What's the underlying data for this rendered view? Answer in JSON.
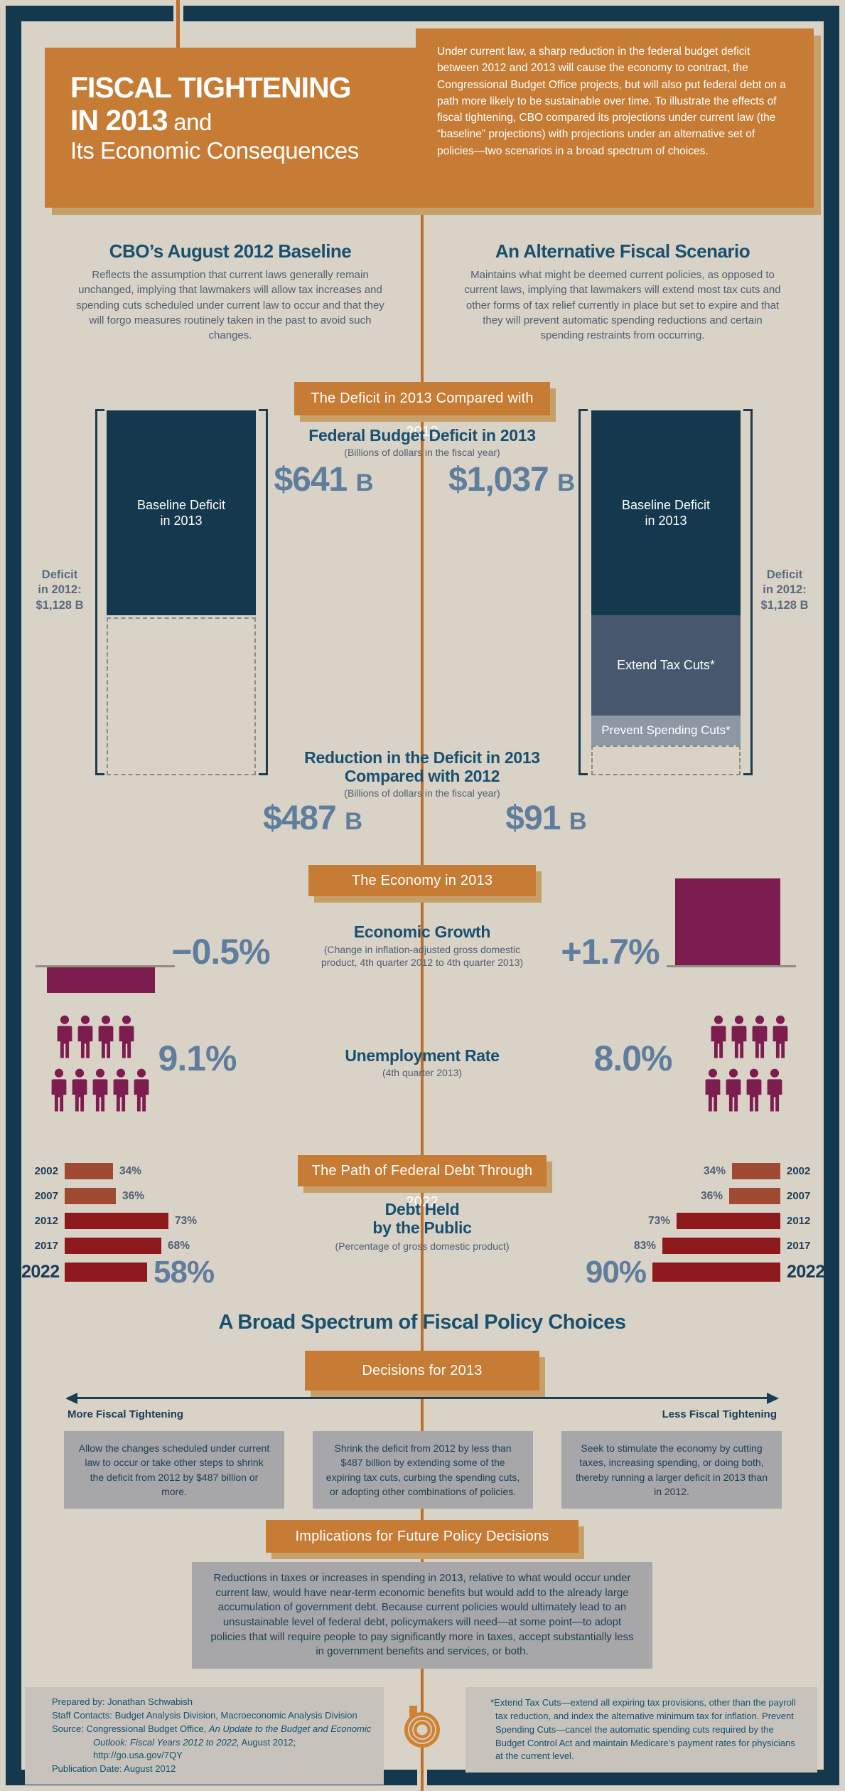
{
  "header": {
    "title_bold_1": "FISCAL TIGHTENING",
    "title_bold_2": "IN 2013",
    "title_light_2": " and",
    "title_light_3": "Its Economic Consequences",
    "intro": "Under current law, a sharp reduction in the federal budget deficit between 2012 and 2013 will cause the economy to contract, the Congressional Budget Office projects, but will also put federal debt on a path more likely to be sustainable over time. To illustrate the effects of fiscal tightening, CBO compared its projections under current law (the “baseline” projections) with projections under an alternative set of policies—two scenarios in a broad spectrum of choices."
  },
  "scenarios": {
    "baseline": {
      "heading": "CBO’s August 2012 Baseline",
      "body": "Reflects the assumption that current laws generally remain unchanged, implying that lawmakers will allow tax increases and spending cuts scheduled under current law to occur and that they will forgo measures routinely taken in the past to avoid such changes."
    },
    "alternative": {
      "heading": "An Alternative Fiscal Scenario",
      "body": "Maintains what might be deemed current policies, as opposed to current laws, implying that lawmakers will extend most tax cuts and other forms of tax relief currently in place but set to expire and that they will prevent automatic spending reductions and certain spending restraints from occurring."
    }
  },
  "banners": {
    "deficit": "The Deficit in 2013 Compared with 2012",
    "economy": "The Economy in 2013",
    "debt": "The Path of Federal Debt Through 2022",
    "decisions": "Decisions for 2013",
    "implications": "Implications for Future Policy Decisions"
  },
  "deficit_chart": {
    "heading": "Federal Budget Deficit in 2013",
    "subtitle": "(Billions of dollars in the fiscal year)",
    "baseline_value": "$641",
    "baseline_unit": "B",
    "alternative_value": "$1,037",
    "alternative_unit": "B",
    "bar_label_1": "Baseline Deficit",
    "bar_label_2": "in 2013",
    "segment_extend": "Extend Tax Cuts*",
    "segment_prevent": "Prevent Spending Cuts*",
    "deficit_2012_label": [
      "Deficit",
      "in 2012:",
      "$1,128 B"
    ],
    "reduction_heading_1": "Reduction in the Deficit in 2013",
    "reduction_heading_2": "Compared with 2012",
    "reduction_subtitle": "(Billions of dollars in the fiscal year)",
    "reduction_baseline": "$487",
    "reduction_baseline_unit": "B",
    "reduction_alternative": "$91",
    "reduction_alternative_unit": "B"
  },
  "economy": {
    "growth_heading": "Economic Growth",
    "growth_subtitle_1": "(Change in inflation-adjusted gross domestic",
    "growth_subtitle_2": "product, 4th quarter 2012 to 4th quarter 2013)",
    "growth_baseline": "−0.5%",
    "growth_alternative": "+1.7%",
    "unemployment_heading": "Unemployment Rate",
    "unemployment_subtitle": "(4th quarter 2013)",
    "unemployment_baseline": "9.1%",
    "unemployment_alternative": "8.0%"
  },
  "debt_section": {
    "heading_1": "Debt Held",
    "heading_2": "by the Public",
    "subtitle": "(Percentage of gross domestic product)"
  },
  "spectrum": {
    "heading": "A Broad Spectrum of Fiscal Policy Choices",
    "more_label": "More Fiscal Tightening",
    "less_label": "Less Fiscal Tightening",
    "box_1": "Allow the changes scheduled under current law to occur or take other steps to shrink the deficit from 2012 by $487 billion or more.",
    "box_2": "Shrink the deficit from 2012 by less than $487 billion by extending some of the expiring tax cuts, curbing the spending cuts, or adopting other combinations of policies.",
    "box_3": "Seek to stimulate the economy by cutting taxes, increasing spending, or doing both, thereby running a larger deficit in 2013 than in 2012.",
    "implications_text": "Reductions in taxes or increases in spending in 2013, relative to what would occur under current law, would have near-term economic benefits but would add to the already large accumulation of government debt. Because current policies would ultimately lead to an unsustainable level of federal debt, policymakers will need—at some point—to adopt policies that will require people to pay significantly more in taxes, accept substantially less in government benefits and services, or both."
  },
  "footer": {
    "prepared_by": "Prepared by: Jonathan Schwabish",
    "staff_contacts": "Staff Contacts: Budget Analysis Division, Macroeconomic Analysis Division",
    "source_prefix": "Source: Congressional Budget Office, ",
    "source_title_1": "An Update to the Budget and Economic Outlook:",
    "source_title_2": "Fiscal Years 2012 to 2022,",
    "source_suffix": " August 2012; http://go.usa.gov/7QY",
    "publication": "Publication Date: August 2012",
    "footnote": "*Extend Tax Cuts—extend all expiring tax provisions, other than the payroll tax reduction, and index the alternative minimum tax for inflation. Prevent Spending Cuts—cancel the automatic spending cuts required by the Budget Control Act and maintain Medicare’s payment rates for physicians at the current level."
  },
  "colors": {
    "background": "#d9d2c6",
    "navy": "#14384d",
    "orange": "#c77c35",
    "orange_line": "#c06f28",
    "shadow_tan": "#c7a069",
    "heading_blue": "#19506f",
    "body_slate": "#4e5f74",
    "big_number_slate": "#5f7d9c",
    "maroon": "#7d1c4e",
    "brick_red": "#a14a33",
    "dark_red": "#8e191c",
    "slate_segment": "#47586e",
    "gray_segment": "#8e97a4",
    "gray_box": "#a7a6a8",
    "footer_box": "#c7c3bc"
  },
  "chart_data": [
    {
      "id": "deficit-comparison",
      "type": "bar",
      "title": "Federal Budget Deficit in 2013",
      "subtitle": "(Billions of dollars in the fiscal year)",
      "ylabel": "Billions of dollars",
      "reference_total": {
        "label": "Deficit in 2012: $1,128 B",
        "value": 1128
      },
      "series": [
        {
          "name": "CBO’s August 2012 Baseline",
          "total": 641,
          "total_label": "$641 B",
          "segments": [
            "Baseline Deficit in 2013"
          ],
          "reduction_vs_2012": 487,
          "reduction_label": "$487 B"
        },
        {
          "name": "An Alternative Fiscal Scenario",
          "total": 1037,
          "total_label": "$1,037 B",
          "segments": [
            "Baseline Deficit in 2013",
            "Extend Tax Cuts*",
            "Prevent Spending Cuts*"
          ],
          "reduction_vs_2012": 91,
          "reduction_label": "$91 B"
        }
      ]
    },
    {
      "id": "economic-growth",
      "type": "bar",
      "title": "Economic Growth",
      "subtitle": "(Change in inflation-adjusted gross domestic product, 4th quarter 2012 to 4th quarter 2013)",
      "categories": [
        "CBO’s August 2012 Baseline",
        "An Alternative Fiscal Scenario"
      ],
      "values": [
        -0.5,
        1.7
      ],
      "labels": [
        "−0.5%",
        "+1.7%"
      ]
    },
    {
      "id": "unemployment-pictogram",
      "type": "pictogram",
      "title": "Unemployment Rate",
      "subtitle": "(4th quarter 2013)",
      "categories": [
        "CBO’s August 2012 Baseline",
        "An Alternative Fiscal Scenario"
      ],
      "values": [
        9.1,
        8.0
      ],
      "labels": [
        "9.1%",
        "8.0%"
      ],
      "icon_rows": [
        [
          4,
          5
        ],
        [
          4,
          4
        ]
      ]
    },
    {
      "id": "debt-held-by-public",
      "type": "bar",
      "title": "Debt Held by the Public",
      "subtitle": "(Percentage of gross domestic product)",
      "categories": [
        "2002",
        "2007",
        "2012",
        "2017",
        "2022"
      ],
      "series": [
        {
          "name": "CBO’s August 2012 Baseline",
          "values": [
            34,
            36,
            73,
            68,
            58
          ],
          "labels": [
            "34%",
            "36%",
            "73%",
            "68%",
            "58%"
          ]
        },
        {
          "name": "An Alternative Fiscal Scenario",
          "values": [
            34,
            36,
            73,
            83,
            90
          ],
          "labels": [
            "34%",
            "36%",
            "73%",
            "83%",
            "90%"
          ]
        }
      ],
      "bar_colors": [
        "#a14a33",
        "#a14a33",
        "#8e191c",
        "#8e191c",
        "#8e191c"
      ]
    }
  ]
}
